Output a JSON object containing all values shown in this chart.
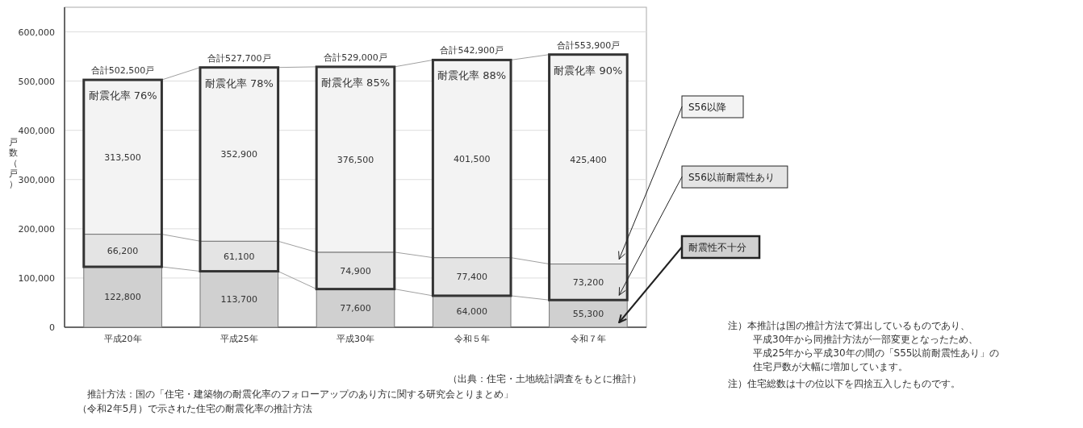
{
  "chart_data": {
    "type": "bar",
    "stacked": true,
    "ylabel": "戸数（戸）",
    "categories": [
      "平成20年",
      "平成25年",
      "平成30年",
      "令和５年",
      "令和７年"
    ],
    "series": [
      {
        "name": "耐震性不十分",
        "color": "#d0d0d0",
        "values": [
          122800,
          113700,
          77600,
          64000,
          55300
        ],
        "value_labels": [
          "122,800",
          "113,700",
          "77,600",
          "64,000",
          "55,300"
        ]
      },
      {
        "name": "S56以前耐震性あり",
        "color": "#e4e4e4",
        "values": [
          66200,
          61100,
          74900,
          77400,
          73200
        ],
        "value_labels": [
          "66,200",
          "61,100",
          "74,900",
          "77,400",
          "73,200"
        ]
      },
      {
        "name": "S56以降",
        "color": "#f3f3f3",
        "values": [
          313500,
          352900,
          376500,
          401500,
          425400
        ],
        "value_labels": [
          "313,500",
          "352,900",
          "376,500",
          "401,500",
          "425,400"
        ]
      }
    ],
    "ylim": [
      0,
      650000
    ],
    "yticks": [
      0,
      {
        "value": 100000,
        "label": "100,000"
      },
      {
        "value": 200000,
        "label": "200,000"
      },
      {
        "value": 300000,
        "label": "300,000"
      },
      {
        "value": 400000,
        "label": "400,000"
      },
      {
        "value": 500000,
        "label": "500,000"
      },
      {
        "value": 600000,
        "label": "600,000"
      }
    ],
    "grid": "y",
    "legend": "right",
    "totals": [
      "合計502,500戸",
      "合計527,700戸",
      "合計529,000戸",
      "合計542,900戸",
      "合計553,900戸"
    ],
    "annotations": [
      "（出典：住宅・土地統計調査をもとに推計）",
      "推計方法：国の「住宅・建築物の耐震化率のフォローアップのあり方に関する研究会とりまとめ」",
      "（令和2年5月）で示された住宅の耐震化率の推計方法",
      "注）本推計は国の推計方法で算出しているものであり、",
      "平成30年から同推計方法が一部変更となったため、",
      "平成25年から平成30年の間の「S55以前耐震性あり」の",
      "住宅戸数が大幅に増加しています。",
      "注）住宅総数は十の位以下を四捨五入したものです。",
      {
        "text": "耐震化率 76%",
        "x": "平成20年",
        "y": 502500
      },
      {
        "text": "耐震化率 78%",
        "x": "平成25年",
        "y": 527700
      },
      {
        "text": "耐震化率 85%",
        "x": "平成30年",
        "y": 529000
      },
      {
        "text": "耐震化率 88%",
        "x": "令和５年",
        "y": 542900
      },
      {
        "text": "耐震化率 90%",
        "x": "令和７年",
        "y": 553900
      }
    ]
  }
}
